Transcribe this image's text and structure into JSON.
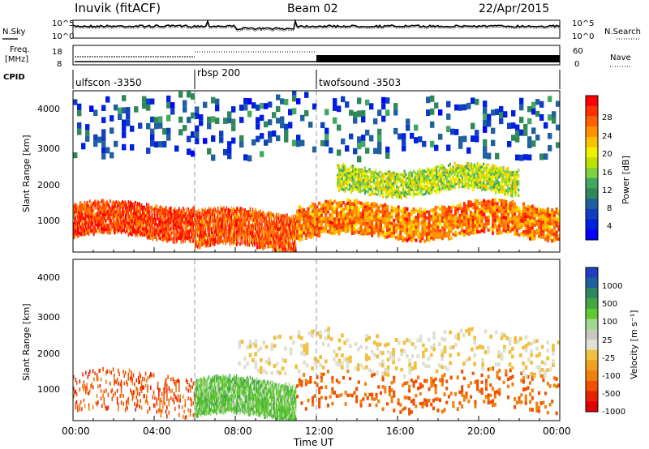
{
  "header": {
    "title": "Inuvik (fitACF)",
    "beam": "Beam 02",
    "date": "22/Apr/2015"
  },
  "top_panels": {
    "nsky_label": "N.Sky",
    "nsearch_label": "N.Search",
    "noise_ticks_left": [
      "10^5",
      "10^0"
    ],
    "noise_ticks_right": [
      "10^5",
      "10^0"
    ],
    "freq_label_1": "Freq.",
    "freq_label_2": "[MHz]",
    "freq_ticks": [
      "18",
      "8"
    ],
    "nave_label": "Nave",
    "nave_ticks": [
      "60",
      "0"
    ],
    "cpid_label": "CPID",
    "cpid_segments": [
      {
        "name": "ulfscon -3350"
      },
      {
        "name": "rbsp 200"
      },
      {
        "name": "twofsound -3503"
      }
    ]
  },
  "power_panel": {
    "ylabel": "Slant Range [km]",
    "yticks": [
      "1000",
      "2000",
      "3000",
      "4000"
    ],
    "colorbar_label": "Power [dB]",
    "colorbar_ticks": [
      "28",
      "24",
      "20",
      "16",
      "12",
      "8",
      "4"
    ],
    "colors": [
      "#ff0000",
      "#ff3000",
      "#ff6000",
      "#ff9000",
      "#ffc000",
      "#f0f000",
      "#c0e000",
      "#80d040",
      "#40a860",
      "#308858",
      "#2060a0",
      "#1040c0",
      "#0020e0",
      "#0000ff"
    ]
  },
  "velocity_panel": {
    "ylabel": "Slant Range [km]",
    "yticks": [
      "1000",
      "2000",
      "3000",
      "4000"
    ],
    "colorbar_label": "Velocity [m s⁻¹]",
    "colorbar_ticks": [
      "1000",
      "500",
      "100",
      "25",
      "-25",
      "-100",
      "-500",
      "-1000"
    ],
    "colors": [
      "#2040c0",
      "#2060a0",
      "#308860",
      "#40a840",
      "#60c830",
      "#a0d890",
      "#c8c8c0",
      "#e0e0d0",
      "#f0c040",
      "#f0a020",
      "#f08010",
      "#f05000",
      "#e82000",
      "#e00000"
    ]
  },
  "xaxis": {
    "label": "Time UT",
    "ticks": [
      "00:00",
      "04:00",
      "08:00",
      "12:00",
      "16:00",
      "20:00",
      "00:00"
    ]
  },
  "chart_data": [
    {
      "type": "line",
      "panel": "noise",
      "series": [
        {
          "name": "N.Sky"
        },
        {
          "name": "N.Search"
        }
      ],
      "x_range_hours": [
        0,
        24
      ],
      "ylim_log10": [
        0,
        5
      ]
    },
    {
      "type": "line",
      "panel": "frequency / nave",
      "series": [
        {
          "name": "Freq."
        },
        {
          "name": "Nave"
        }
      ],
      "freq_ylim_MHz": [
        8,
        18
      ],
      "nave_ylim": [
        0,
        60
      ],
      "x_range_hours": [
        0,
        24
      ]
    },
    {
      "type": "table",
      "panel": "cpid",
      "segments": [
        {
          "name": "ulfscon -3350",
          "start_h": 0,
          "end_h": 6
        },
        {
          "name": "rbsp 200",
          "start_h": 6,
          "end_h": 12
        },
        {
          "name": "twofsound -3503",
          "start_h": 12,
          "end_h": 24
        }
      ]
    },
    {
      "type": "heatmap",
      "panel": "power",
      "xlabel": "Time UT",
      "ylabel": "Slant Range [km]",
      "x_range_hours": [
        0,
        24
      ],
      "ylim_km": [
        200,
        4600
      ],
      "colorbar": {
        "label": "Power [dB]",
        "range": [
          0,
          32
        ],
        "ticks": [
          4,
          8,
          12,
          16,
          20,
          24,
          28
        ]
      },
      "bands": [
        {
          "t0": 0,
          "t1": 6,
          "r0": 600,
          "r1": 1500,
          "value": 28
        },
        {
          "t0": 6,
          "t1": 11,
          "r0": 300,
          "r1": 1300,
          "value": 27
        },
        {
          "t0": 11,
          "t1": 24,
          "r0": 600,
          "r1": 1500,
          "value": 25
        },
        {
          "t0": 13,
          "t1": 22,
          "r0": 1800,
          "r1": 2500,
          "value": 17
        },
        {
          "t0": 0,
          "t1": 24,
          "r0": 2800,
          "r1": 4500,
          "value": 7
        }
      ]
    },
    {
      "type": "heatmap",
      "panel": "velocity",
      "xlabel": "Time UT",
      "ylabel": "Slant Range [km]",
      "x_range_hours": [
        0,
        24
      ],
      "ylim_km": [
        200,
        4600
      ],
      "colorbar": {
        "label": "Velocity [m s⁻¹]",
        "ticks": [
          1000,
          500,
          100,
          25,
          -25,
          -100,
          -500,
          -1000
        ]
      },
      "bands": [
        {
          "t0": 0,
          "t1": 6,
          "r0": 400,
          "r1": 1500,
          "value": -400
        },
        {
          "t0": 6,
          "t1": 11,
          "r0": 300,
          "r1": 1300,
          "value": 200
        },
        {
          "t0": 11,
          "t1": 24,
          "r0": 500,
          "r1": 1500,
          "value": -300
        },
        {
          "t0": 8,
          "t1": 24,
          "r0": 1500,
          "r1": 2600,
          "value": 0
        }
      ]
    }
  ]
}
